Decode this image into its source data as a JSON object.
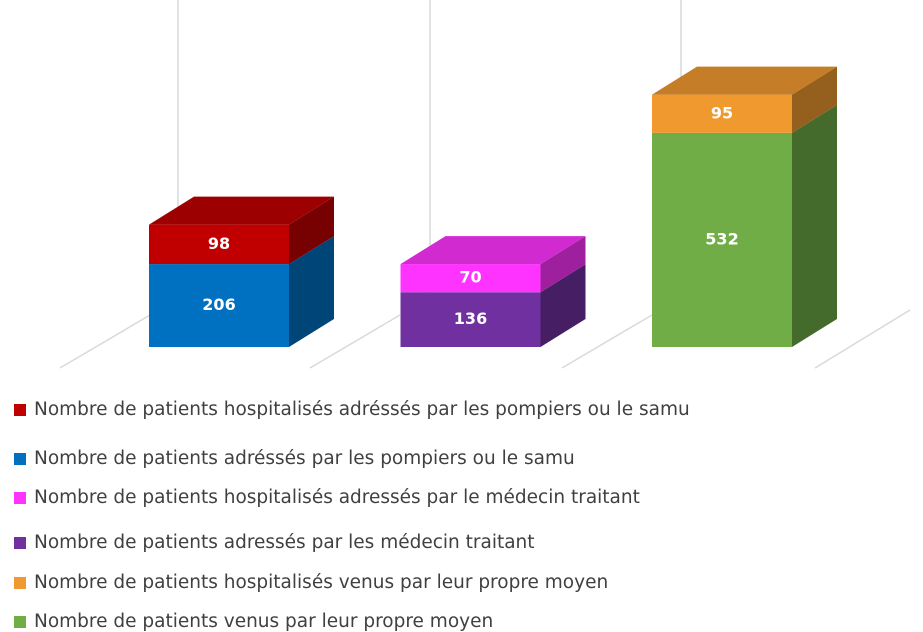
{
  "chart_data": {
    "type": "bar3d_stacked",
    "categories": [
      null,
      null,
      null
    ],
    "series": [
      {
        "name": "Nombre de patients hospitalisés adréssés par les pompiers ou le samu",
        "color": "#c00000",
        "values": [
          98,
          null,
          null
        ]
      },
      {
        "name": "Nombre de patients adréssés par les pompiers ou le samu",
        "color": "#0070c0",
        "values": [
          206,
          null,
          null
        ]
      },
      {
        "name": "Nombre de patients hospitalisés adressés par le  médecin traitant",
        "color": "#ff33ff",
        "values": [
          null,
          70,
          null
        ]
      },
      {
        "name": "Nombre de patients adressés par les médecin traitant",
        "color": "#7030a0",
        "values": [
          null,
          136,
          null
        ]
      },
      {
        "name": "Nombre de patients hospitalisés venus par leur propre moyen",
        "color": "#f0992f",
        "values": [
          null,
          null,
          95
        ]
      },
      {
        "name": "Nombre de patients venus par leur propre moyen",
        "color": "#70ad47",
        "values": [
          null,
          null,
          532
        ]
      }
    ],
    "ylim": [
      0,
      800
    ]
  }
}
